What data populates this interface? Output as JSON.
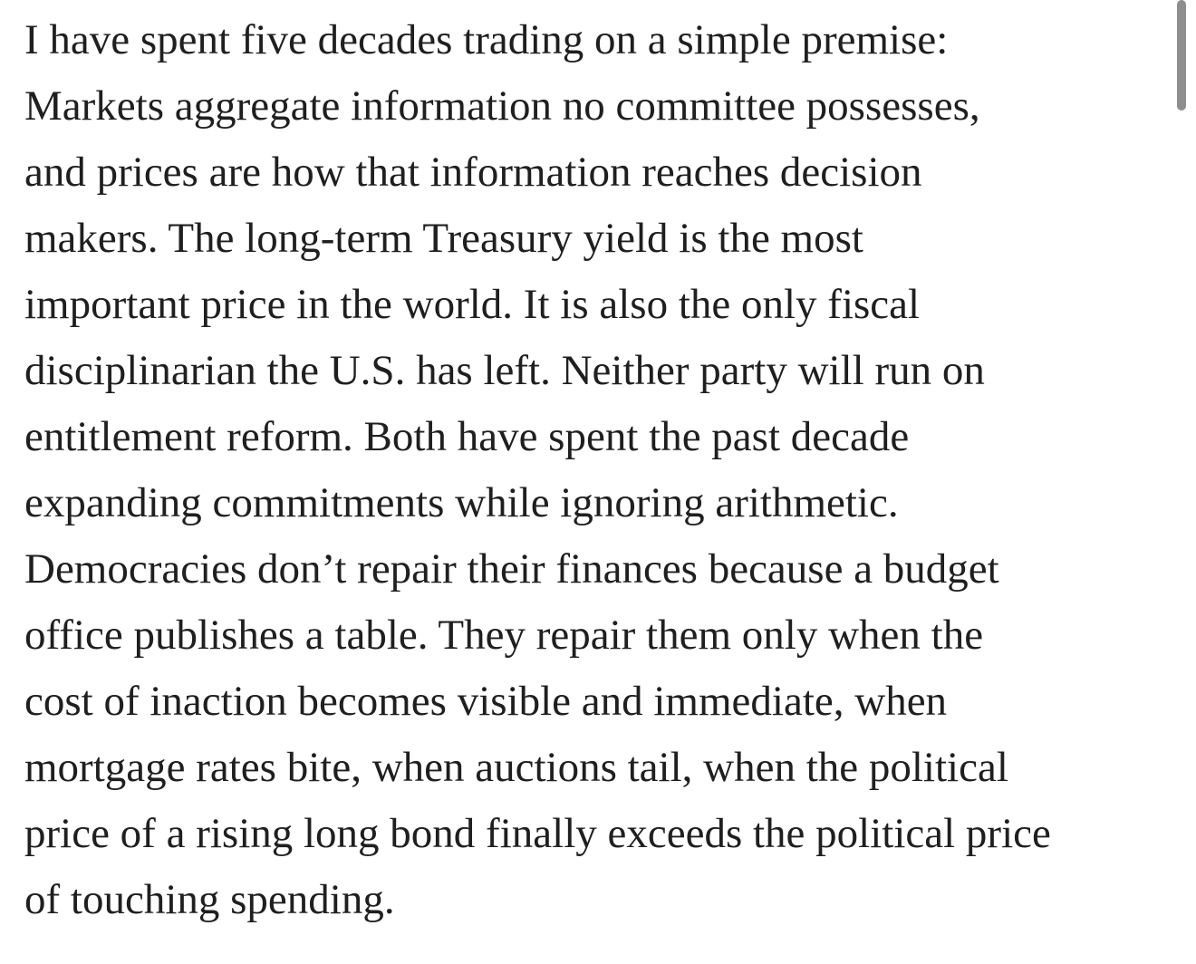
{
  "article": {
    "lines": [
      "I have spent five decades trading on a simple premise:",
      "Markets aggregate information no committee possesses,",
      "and prices are how that information reaches decision",
      "makers. The long-term Treasury yield is the most",
      "important price in the world. It is also the only fiscal",
      "disciplinarian the U.S. has left. Neither party will run on",
      "entitlement reform. Both have spent the past decade",
      "expanding commitments while ignoring arithmetic.",
      "Democracies don’t repair their finances because a budget",
      "office publishes a table. They repair them only when the",
      "cost of inaction becomes visible and immediate, when",
      "mortgage rates bite, when auctions tail, when the political",
      "price of a rising long bond finally exceeds the political price",
      "of touching spending."
    ]
  }
}
